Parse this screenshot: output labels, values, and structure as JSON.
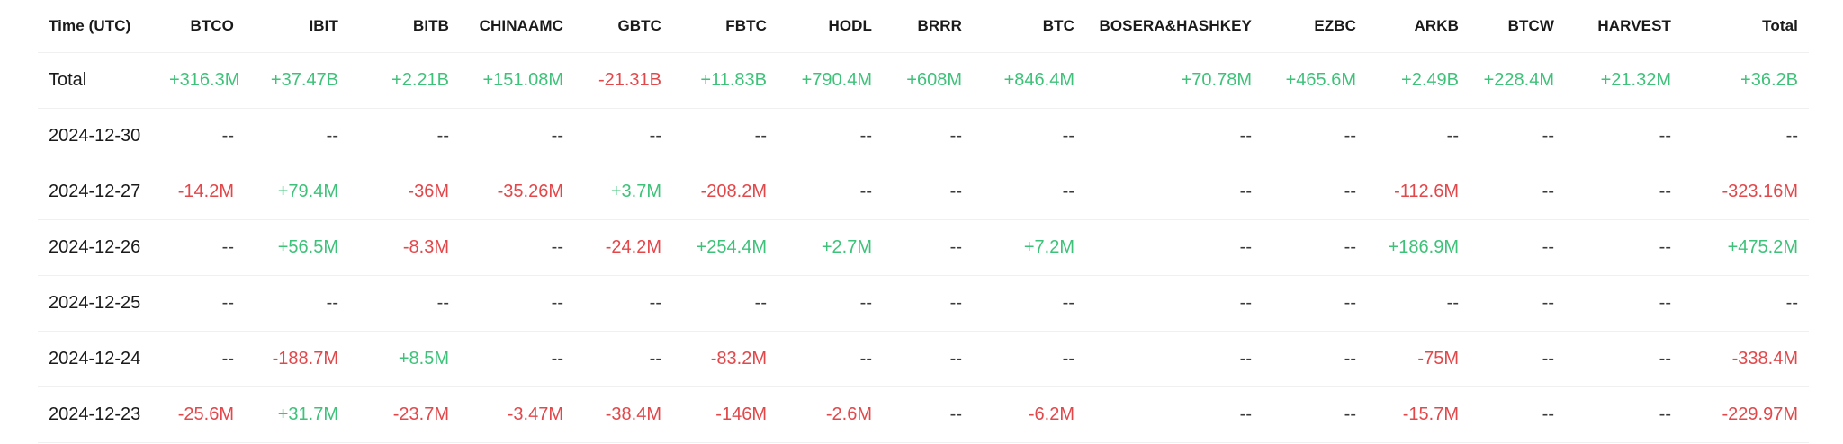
{
  "table": {
    "headers": [
      "Time (UTC)",
      "BTCO",
      "IBIT",
      "BITB",
      "CHINAAMC",
      "GBTC",
      "FBTC",
      "HODL",
      "BRRR",
      "BTC",
      "BOSERA&HASHKEY",
      "EZBC",
      "ARKB",
      "BTCW",
      "HARVEST",
      "Total"
    ],
    "rows": [
      {
        "label": "Total",
        "cells": [
          "+316.3M",
          "+37.47B",
          "+2.21B",
          "+151.08M",
          "-21.31B",
          "+11.83B",
          "+790.4M",
          "+608M",
          "+846.4M",
          "+70.78M",
          "+465.6M",
          "+2.49B",
          "+228.4M",
          "+21.32M",
          "+36.2B"
        ]
      },
      {
        "label": "2024-12-30",
        "cells": [
          "--",
          "--",
          "--",
          "--",
          "--",
          "--",
          "--",
          "--",
          "--",
          "--",
          "--",
          "--",
          "--",
          "--",
          "--"
        ]
      },
      {
        "label": "2024-12-27",
        "cells": [
          "-14.2M",
          "+79.4M",
          "-36M",
          "-35.26M",
          "+3.7M",
          "-208.2M",
          "--",
          "--",
          "--",
          "--",
          "--",
          "-112.6M",
          "--",
          "--",
          "-323.16M"
        ]
      },
      {
        "label": "2024-12-26",
        "cells": [
          "--",
          "+56.5M",
          "-8.3M",
          "--",
          "-24.2M",
          "+254.4M",
          "+2.7M",
          "--",
          "+7.2M",
          "--",
          "--",
          "+186.9M",
          "--",
          "--",
          "+475.2M"
        ]
      },
      {
        "label": "2024-12-25",
        "cells": [
          "--",
          "--",
          "--",
          "--",
          "--",
          "--",
          "--",
          "--",
          "--",
          "--",
          "--",
          "--",
          "--",
          "--",
          "--"
        ]
      },
      {
        "label": "2024-12-24",
        "cells": [
          "--",
          "-188.7M",
          "+8.5M",
          "--",
          "--",
          "-83.2M",
          "--",
          "--",
          "--",
          "--",
          "--",
          "-75M",
          "--",
          "--",
          "-338.4M"
        ]
      },
      {
        "label": "2024-12-23",
        "cells": [
          "-25.6M",
          "+31.7M",
          "-23.7M",
          "-3.47M",
          "-38.4M",
          "-146M",
          "-2.6M",
          "--",
          "-6.2M",
          "--",
          "--",
          "-15.7M",
          "--",
          "--",
          "-229.97M"
        ]
      }
    ]
  },
  "colors": {
    "positive": "#3ec27a",
    "negative": "#e2474a",
    "neutral": "#3a3a3a",
    "divider": "#f0f0f0"
  }
}
